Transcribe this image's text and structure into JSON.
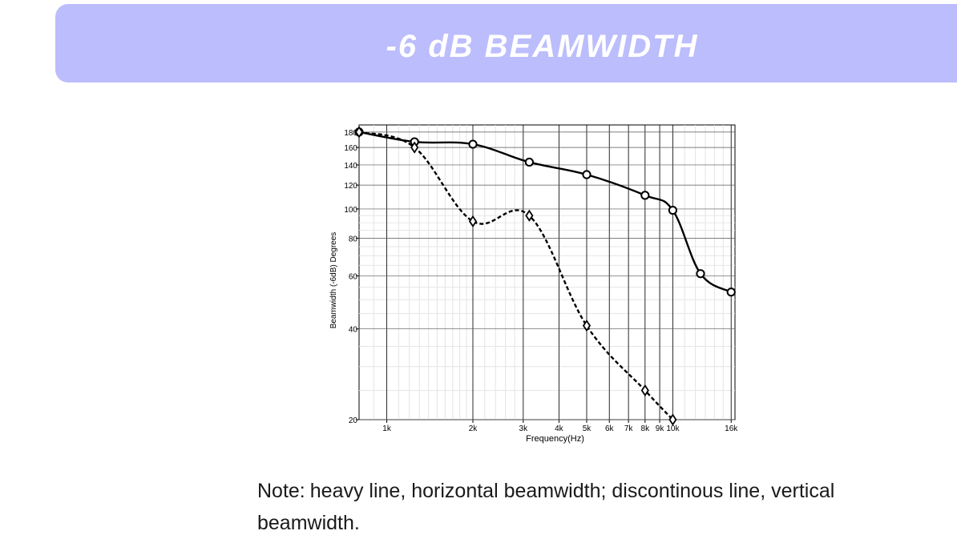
{
  "banner": {
    "title": "-6 dB BEAMWIDTH"
  },
  "note": {
    "label": "Note:",
    "text": "heavy line, horizontal beamwidth; discontinous line, vertical beamwidth."
  },
  "chart_data": {
    "type": "line",
    "title": "",
    "xlabel": "Frequency(Hz)",
    "ylabel": "Beamwidth (-6dB) Degrees",
    "xscale": "log",
    "yscale": "log",
    "xlim": [
      800,
      16500
    ],
    "ylim": [
      20,
      190
    ],
    "grid": true,
    "legend": "none",
    "x_ticks": [
      {
        "value": 1000,
        "label": "1k"
      },
      {
        "value": 2000,
        "label": "2k"
      },
      {
        "value": 3000,
        "label": "3k"
      },
      {
        "value": 4000,
        "label": "4k"
      },
      {
        "value": 5000,
        "label": "5k"
      },
      {
        "value": 6000,
        "label": "6k"
      },
      {
        "value": 7000,
        "label": "7k"
      },
      {
        "value": 8000,
        "label": "8k"
      },
      {
        "value": 9000,
        "label": "9k"
      },
      {
        "value": 10000,
        "label": "10k"
      },
      {
        "value": 16000,
        "label": "16k"
      }
    ],
    "y_ticks": [
      {
        "value": 20,
        "label": "20"
      },
      {
        "value": 40,
        "label": "40"
      },
      {
        "value": 60,
        "label": "60"
      },
      {
        "value": 80,
        "label": "80"
      },
      {
        "value": 100,
        "label": "100"
      },
      {
        "value": 120,
        "label": "120"
      },
      {
        "value": 140,
        "label": "140"
      },
      {
        "value": 160,
        "label": "160"
      },
      {
        "value": 180,
        "label": "180"
      }
    ],
    "series": [
      {
        "style": "solid",
        "marker": "circle",
        "color": "#000000",
        "x": [
          800,
          1250,
          2000,
          3150,
          5000,
          8000,
          10000,
          12500,
          16000
        ],
        "y": [
          180,
          167,
          164,
          143,
          130,
          111,
          99,
          61,
          53
        ]
      },
      {
        "style": "dashed",
        "marker": "diamond",
        "color": "#000000",
        "x": [
          800,
          1250,
          2000,
          3150,
          5000,
          8000,
          10000
        ],
        "y": [
          180,
          160,
          91,
          95,
          41,
          25,
          20
        ]
      }
    ]
  }
}
